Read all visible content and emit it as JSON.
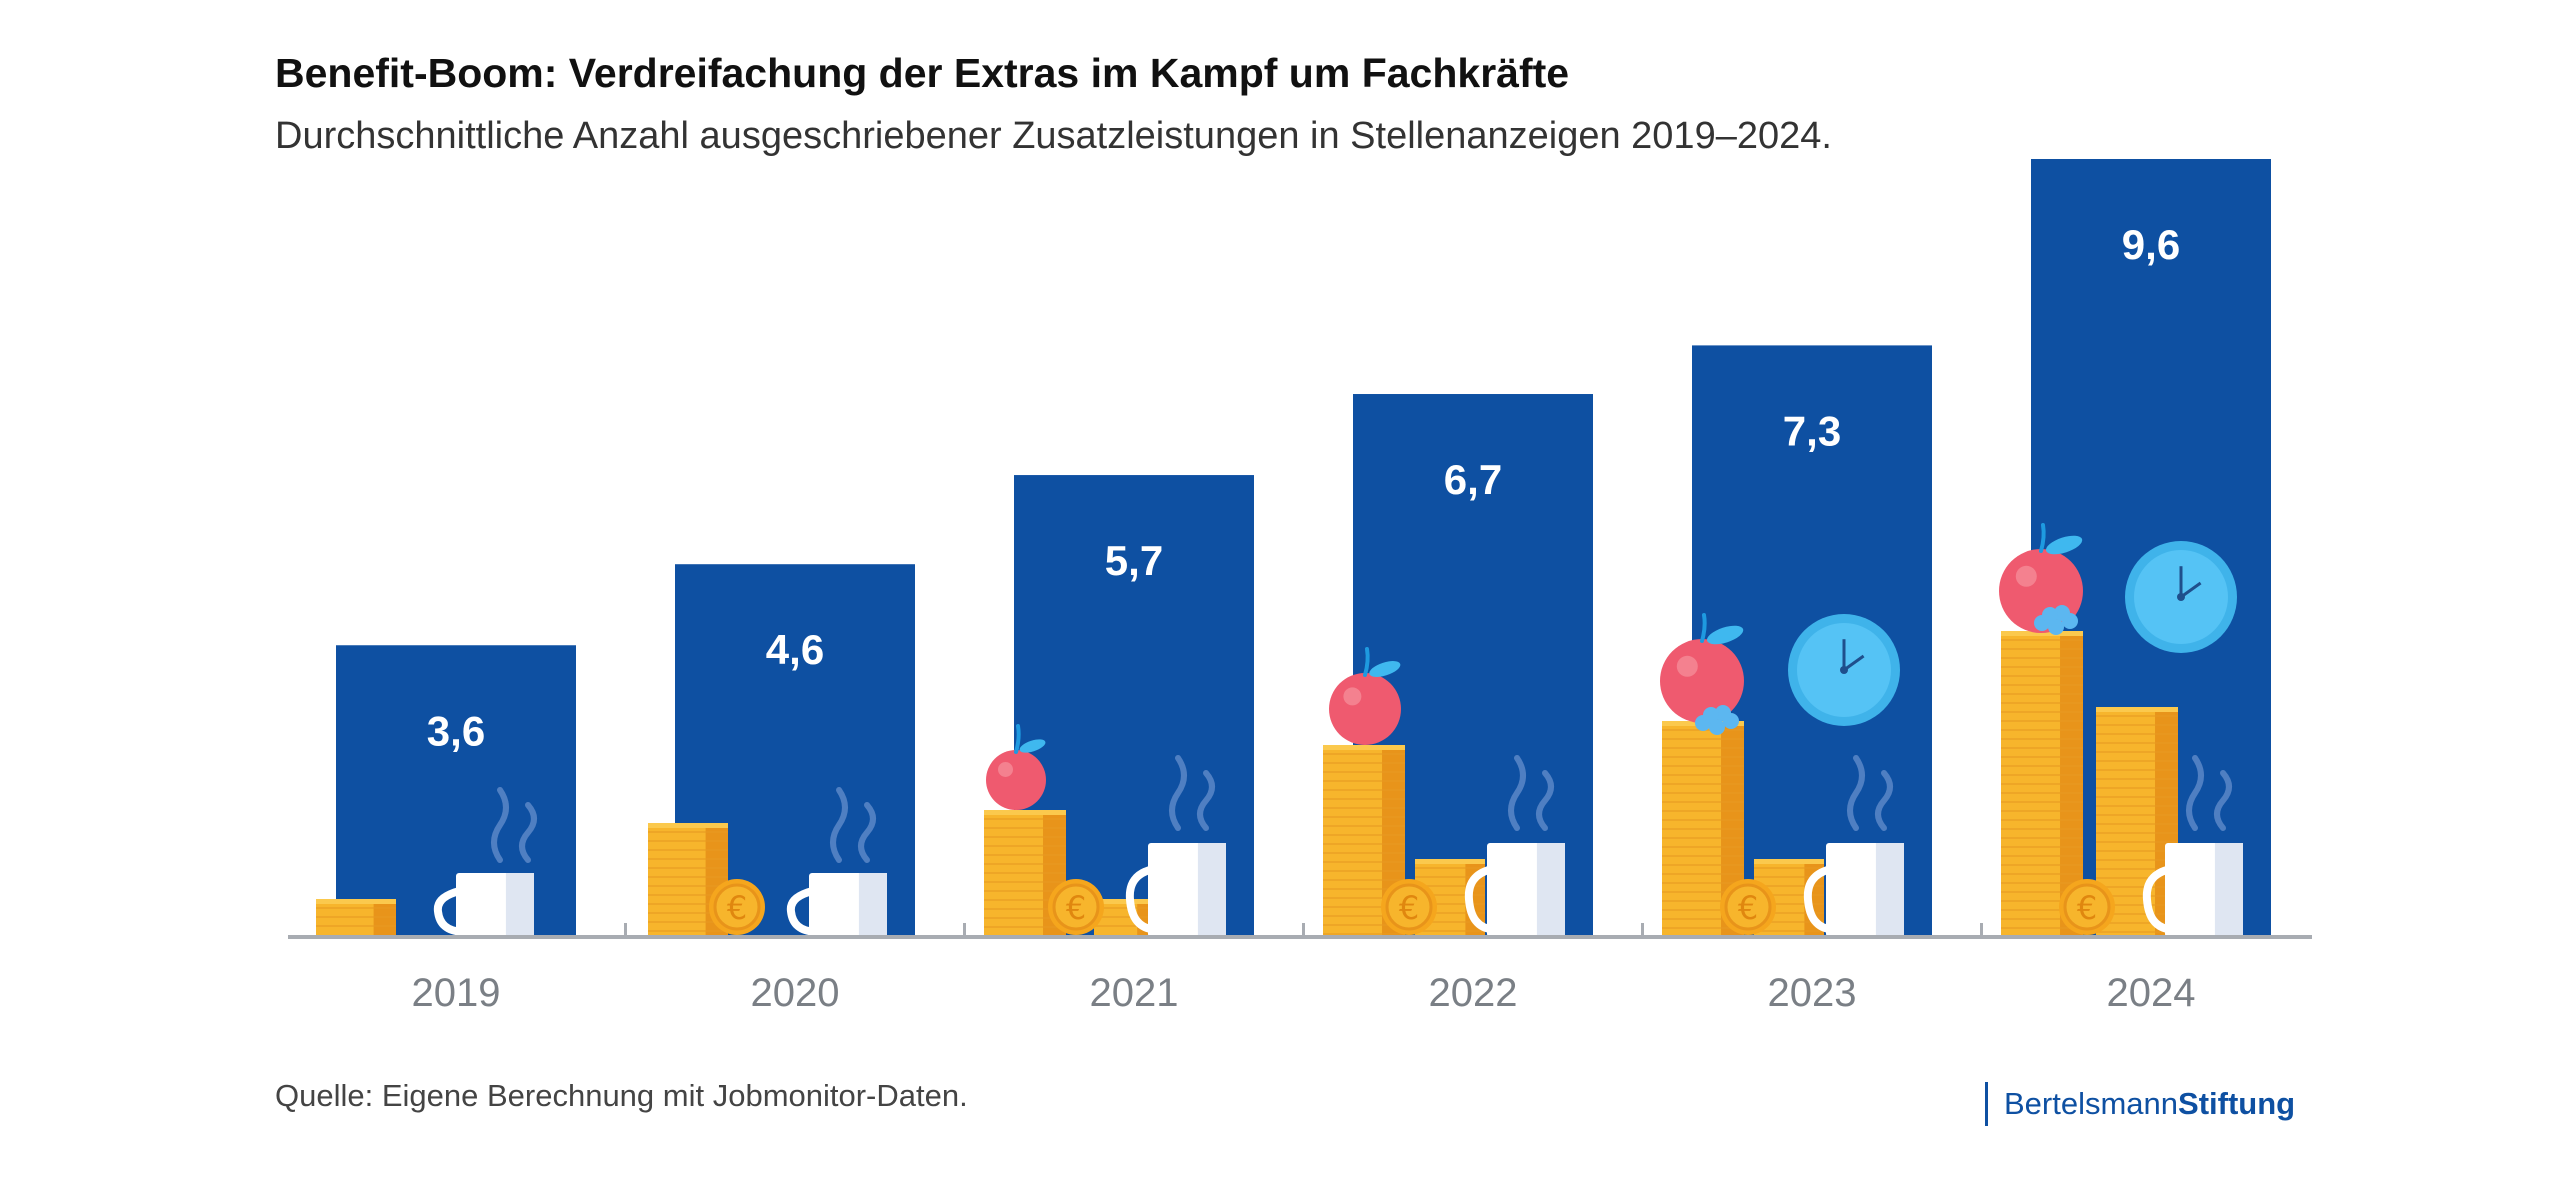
{
  "title": "Benefit-Boom: Verdreifachung der Extras im Kampf um Fachkräfte",
  "subtitle": "Durchschnittliche Anzahl ausgeschriebener Zusatzleistungen in Stellenanzeigen 2019–2024.",
  "source": "Quelle: Eigene Berechnung mit Jobmonitor-Daten.",
  "logo": {
    "part1": "Bertelsmann",
    "part2": "Stiftung"
  },
  "colors": {
    "bar": "#0e50a2",
    "axis": "#a8acb2",
    "tick_label": "#7a7f85",
    "value_label": "#ffffff",
    "coin": "#f7b52c",
    "coin_dark": "#e8941a",
    "apple": "#ef5a6f",
    "clock": "#55c3f5",
    "cup": "#ffffff"
  },
  "chart_data": {
    "type": "bar",
    "categories": [
      "2019",
      "2020",
      "2021",
      "2022",
      "2023",
      "2024"
    ],
    "values": [
      3.6,
      4.6,
      5.7,
      6.7,
      7.3,
      9.6
    ],
    "value_labels": [
      "3,6",
      "4,6",
      "5,7",
      "6,7",
      "7,3",
      "9,6"
    ],
    "ylim": [
      0,
      9.6
    ],
    "grid": false,
    "legend": "none",
    "icons": [
      "coin-stack-icon",
      "euro-coin-icon",
      "coffee-cup-icon",
      "apple-icon",
      "clock-icon"
    ]
  }
}
